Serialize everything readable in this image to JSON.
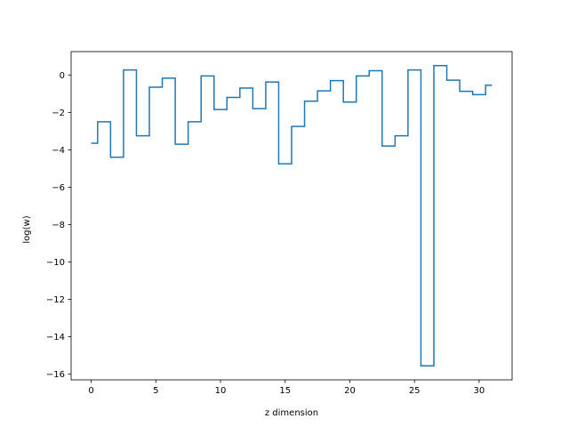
{
  "chart_data": {
    "type": "line",
    "drawstyle": "steps-mid",
    "title": "",
    "xlabel": "z dimension",
    "ylabel": "log(w)",
    "xlim": [
      -1.55,
      32.55
    ],
    "ylim": [
      -16.3,
      1.25
    ],
    "xticks": [
      0,
      5,
      10,
      15,
      20,
      25,
      30
    ],
    "xtick_labels": [
      "0",
      "5",
      "10",
      "15",
      "20",
      "25",
      "30"
    ],
    "yticks": [
      0,
      -2,
      -4,
      -6,
      -8,
      -10,
      -12,
      -14,
      -16
    ],
    "ytick_labels": [
      "0",
      "−2",
      "−4",
      "−6",
      "−8",
      "−10",
      "−12",
      "−14",
      "−16"
    ],
    "grid": false,
    "line_color": "#1f77b4",
    "series": [
      {
        "x": [
          0,
          1,
          2,
          3,
          4,
          5,
          6,
          7,
          8,
          9,
          10,
          11,
          12,
          13,
          14,
          15,
          16,
          17,
          18,
          19,
          20,
          21,
          22,
          23,
          24,
          25,
          26,
          27,
          28,
          29,
          30,
          31
        ],
        "y": [
          -3.65,
          -2.5,
          -4.4,
          0.27,
          -3.25,
          -0.65,
          -0.17,
          -3.7,
          -2.5,
          -0.05,
          -1.85,
          -1.2,
          -0.7,
          -1.8,
          -0.38,
          -4.75,
          -2.75,
          -1.4,
          -0.85,
          -0.3,
          -1.45,
          -0.05,
          0.23,
          -3.8,
          -3.25,
          0.27,
          -15.55,
          0.5,
          -0.28,
          -0.87,
          -1.05,
          -0.55
        ]
      }
    ]
  }
}
